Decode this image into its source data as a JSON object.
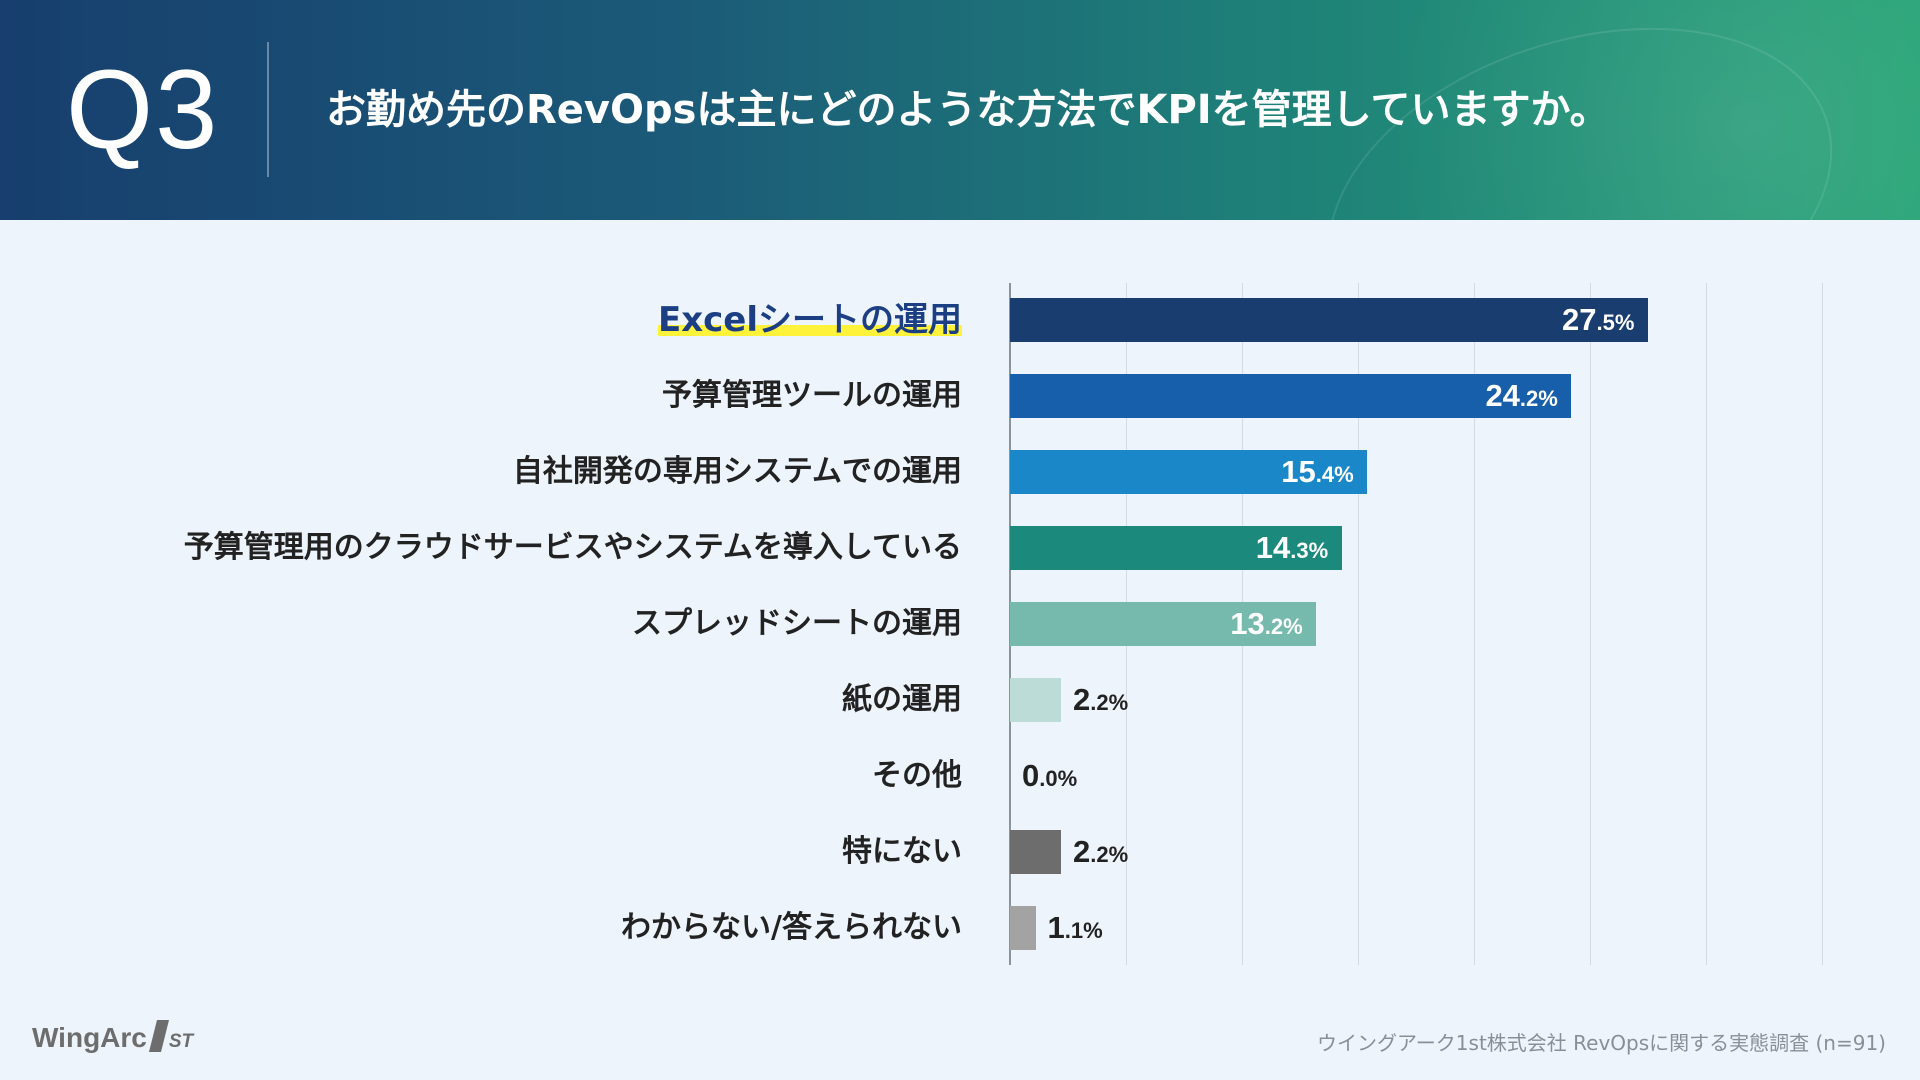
{
  "header": {
    "question_number": "Q3",
    "question_text": "お勤め先のRevOpsは主にどのような方法でKPIを管理していますか。"
  },
  "chart_data": {
    "type": "bar",
    "orientation": "horizontal",
    "title": "お勤め先のRevOpsは主にどのような方法でKPIを管理していますか。",
    "xlabel": "",
    "ylabel": "",
    "xlim": [
      0,
      40
    ],
    "grid": true,
    "value_suffix": "%",
    "categories": [
      "Excelシートの運用",
      "予算管理ツールの運用",
      "自社開発の専用システムでの運用",
      "予算管理用のクラウドサービスやシステムを導入している",
      "スプレッドシートの運用",
      "紙の運用",
      "その他",
      "特にない",
      "わからない/答えられない"
    ],
    "values": [
      27.5,
      24.2,
      15.4,
      14.3,
      13.2,
      2.2,
      0.0,
      2.2,
      1.1
    ],
    "colors": [
      "#1a3d70",
      "#175fab",
      "#1a87c9",
      "#1b8a7d",
      "#76b9ad",
      "#bcdcd8",
      "#bcdcd8",
      "#6d6d6d",
      "#a3a3a3"
    ],
    "highlight_index": 0
  },
  "footer": {
    "logo_text": "WingArc",
    "logo_mark": "1",
    "logo_suffix": "ST",
    "source": "ウイングアーク1st株式会社 RevOpsに関する実態調査 (n=91)"
  }
}
